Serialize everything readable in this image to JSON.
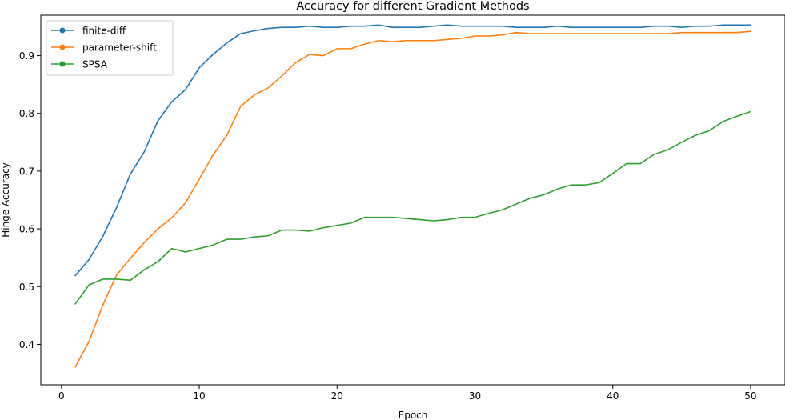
{
  "chart_data": {
    "type": "line",
    "title": "Accuracy for different Gradient Methods",
    "xlabel": "Epoch",
    "ylabel": "Hinge Accuracy",
    "xlim": [
      -1.5,
      52.5
    ],
    "ylim": [
      0.33,
      0.97
    ],
    "xticks": [
      0,
      10,
      20,
      30,
      40,
      50
    ],
    "yticks": [
      0.4,
      0.5,
      0.6,
      0.7,
      0.8,
      0.9
    ],
    "grid": false,
    "legend_position": "top-left",
    "x": [
      1,
      2,
      3,
      4,
      5,
      6,
      7,
      8,
      9,
      10,
      11,
      12,
      13,
      14,
      15,
      16,
      17,
      18,
      19,
      20,
      21,
      22,
      23,
      24,
      25,
      26,
      27,
      28,
      29,
      30,
      31,
      32,
      33,
      34,
      35,
      36,
      37,
      38,
      39,
      40,
      41,
      42,
      43,
      44,
      45,
      46,
      47,
      48,
      49,
      50
    ],
    "series": [
      {
        "name": "finite-diff",
        "color": "#1f77b4",
        "values": [
          0.519,
          0.547,
          0.587,
          0.637,
          0.695,
          0.733,
          0.787,
          0.82,
          0.841,
          0.879,
          0.902,
          0.922,
          0.938,
          0.943,
          0.947,
          0.949,
          0.949,
          0.951,
          0.949,
          0.949,
          0.951,
          0.951,
          0.953,
          0.949,
          0.949,
          0.949,
          0.951,
          0.953,
          0.951,
          0.951,
          0.951,
          0.951,
          0.949,
          0.949,
          0.949,
          0.951,
          0.949,
          0.949,
          0.949,
          0.949,
          0.949,
          0.949,
          0.951,
          0.951,
          0.949,
          0.951,
          0.951,
          0.953,
          0.953,
          0.953
        ]
      },
      {
        "name": "parameter-shift",
        "color": "#ff7f0e",
        "values": [
          0.361,
          0.405,
          0.468,
          0.52,
          0.549,
          0.576,
          0.6,
          0.619,
          0.645,
          0.686,
          0.728,
          0.762,
          0.812,
          0.832,
          0.844,
          0.865,
          0.888,
          0.902,
          0.9,
          0.912,
          0.912,
          0.92,
          0.926,
          0.924,
          0.926,
          0.926,
          0.926,
          0.928,
          0.93,
          0.934,
          0.934,
          0.936,
          0.94,
          0.938,
          0.938,
          0.938,
          0.938,
          0.938,
          0.938,
          0.938,
          0.938,
          0.938,
          0.938,
          0.938,
          0.94,
          0.94,
          0.94,
          0.94,
          0.94,
          0.942
        ]
      },
      {
        "name": "SPSA",
        "color": "#2ca02c",
        "values": [
          0.47,
          0.503,
          0.513,
          0.513,
          0.511,
          0.529,
          0.543,
          0.566,
          0.56,
          0.566,
          0.572,
          0.582,
          0.582,
          0.586,
          0.588,
          0.598,
          0.598,
          0.596,
          0.602,
          0.606,
          0.61,
          0.62,
          0.62,
          0.62,
          0.618,
          0.616,
          0.614,
          0.616,
          0.62,
          0.62,
          0.627,
          0.633,
          0.643,
          0.653,
          0.659,
          0.669,
          0.676,
          0.676,
          0.68,
          0.696,
          0.713,
          0.713,
          0.729,
          0.737,
          0.75,
          0.762,
          0.77,
          0.786,
          0.795,
          0.803
        ]
      }
    ]
  }
}
